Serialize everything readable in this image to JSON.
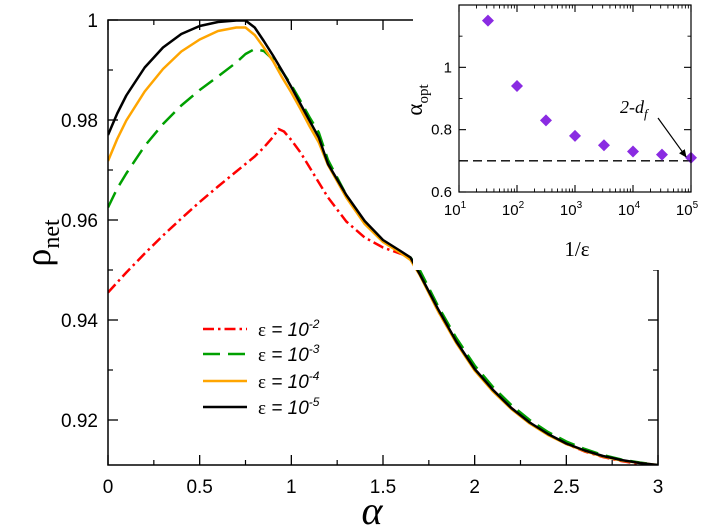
{
  "chart_data": [
    {
      "id": "main",
      "type": "line",
      "xlabel": "α",
      "ylabel": {
        "base": "ρ",
        "sub": "net"
      },
      "xlim": [
        0,
        3
      ],
      "ylim": [
        0.911,
        1.0
      ],
      "xticks": [
        {
          "v": 0,
          "label": "0"
        },
        {
          "v": 0.5,
          "label": "0.5"
        },
        {
          "v": 1,
          "label": "1"
        },
        {
          "v": 1.5,
          "label": "1.5"
        },
        {
          "v": 2,
          "label": "2"
        },
        {
          "v": 2.5,
          "label": "2.5"
        },
        {
          "v": 3,
          "label": "3"
        }
      ],
      "yticks": [
        {
          "v": 0.92,
          "label": "0.92"
        },
        {
          "v": 0.94,
          "label": "0.94"
        },
        {
          "v": 0.96,
          "label": "0.96"
        },
        {
          "v": 0.98,
          "label": "0.98"
        },
        {
          "v": 1.0,
          "label": "1"
        }
      ],
      "series": [
        {
          "name": "eps-1e-2",
          "legend": {
            "sym": "ε",
            "eq": " = 10",
            "exp": "-2"
          },
          "color": "#ff0000",
          "dash": "11 4 2.5 4",
          "x": [
            0,
            0.1,
            0.2,
            0.3,
            0.4,
            0.5,
            0.6,
            0.7,
            0.8,
            0.85,
            0.9,
            0.93,
            0.96,
            1.0,
            1.05,
            1.1,
            1.15,
            1.2,
            1.3,
            1.4,
            1.5,
            1.6,
            1.64,
            1.66,
            1.7,
            1.8,
            1.9,
            2.0,
            2.1,
            2.2,
            2.3,
            2.4,
            2.5,
            2.6,
            2.7,
            2.8,
            2.9,
            3.0
          ],
          "y": [
            0.9455,
            0.9495,
            0.9533,
            0.9569,
            0.9603,
            0.9636,
            0.9667,
            0.9697,
            0.9727,
            0.9745,
            0.9766,
            0.9782,
            0.9777,
            0.976,
            0.9735,
            0.9705,
            0.9675,
            0.9645,
            0.9597,
            0.9565,
            0.9545,
            0.9532,
            0.9526,
            0.952,
            0.9492,
            0.9418,
            0.9355,
            0.9302,
            0.926,
            0.9224,
            0.9195,
            0.9171,
            0.9152,
            0.9137,
            0.9126,
            0.9118,
            0.9112,
            0.9108
          ]
        },
        {
          "name": "eps-1e-3",
          "legend": {
            "sym": "ε",
            "eq": " = 10",
            "exp": "-3"
          },
          "color": "#00a000",
          "dash": "17 8",
          "x": [
            0,
            0.05,
            0.1,
            0.2,
            0.3,
            0.4,
            0.5,
            0.6,
            0.7,
            0.75,
            0.8,
            0.85,
            0.9,
            0.95,
            1.0,
            1.05,
            1.1,
            1.15,
            1.2,
            1.3,
            1.4,
            1.5,
            1.6,
            1.65,
            1.7,
            1.8,
            1.9,
            2.0,
            2.1,
            2.2,
            2.3,
            2.4,
            2.5,
            2.6,
            2.7,
            2.8,
            2.9,
            3.0
          ],
          "y": [
            0.9625,
            0.9663,
            0.9693,
            0.9748,
            0.9792,
            0.9829,
            0.986,
            0.9887,
            0.9915,
            0.9932,
            0.9942,
            0.9938,
            0.9921,
            0.9897,
            0.987,
            0.9838,
            0.9805,
            0.9775,
            0.972,
            0.965,
            0.9595,
            0.9558,
            0.9535,
            0.9525,
            0.95,
            0.9428,
            0.9364,
            0.9309,
            0.9266,
            0.923,
            0.92,
            0.9176,
            0.9157,
            0.9142,
            0.913,
            0.9121,
            0.9115,
            0.911
          ]
        },
        {
          "name": "eps-1e-4",
          "legend": {
            "sym": "ε",
            "eq": " = 10",
            "exp": "-4"
          },
          "color": "#ffa500",
          "dash": "",
          "x": [
            0,
            0.05,
            0.1,
            0.2,
            0.3,
            0.4,
            0.5,
            0.6,
            0.7,
            0.75,
            0.8,
            0.85,
            0.9,
            0.95,
            1.0,
            1.05,
            1.1,
            1.15,
            1.2,
            1.3,
            1.4,
            1.5,
            1.6,
            1.65,
            1.7,
            1.8,
            1.9,
            2.0,
            2.1,
            2.2,
            2.3,
            2.4,
            2.5,
            2.6,
            2.7,
            2.8,
            2.9,
            3.0
          ],
          "y": [
            0.9718,
            0.9762,
            0.9799,
            0.9857,
            0.9902,
            0.9937,
            0.9961,
            0.9978,
            0.9985,
            0.9985,
            0.997,
            0.9945,
            0.9918,
            0.9885,
            0.9855,
            0.9822,
            0.9787,
            0.9755,
            0.971,
            0.9645,
            0.9592,
            0.9556,
            0.9533,
            0.952,
            0.949,
            0.9418,
            0.9354,
            0.9299,
            0.9257,
            0.9222,
            0.9193,
            0.917,
            0.9152,
            0.9138,
            0.9127,
            0.9119,
            0.9114,
            0.911
          ]
        },
        {
          "name": "eps-1e-5",
          "legend": {
            "sym": "ε",
            "eq": " = 10",
            "exp": "-5"
          },
          "color": "#000000",
          "dash": "",
          "x": [
            0,
            0.05,
            0.1,
            0.2,
            0.3,
            0.4,
            0.5,
            0.6,
            0.7,
            0.75,
            0.8,
            0.85,
            0.9,
            0.95,
            1.0,
            1.05,
            1.1,
            1.15,
            1.2,
            1.3,
            1.4,
            1.5,
            1.6,
            1.65,
            1.7,
            1.8,
            1.9,
            2.0,
            2.1,
            2.2,
            2.3,
            2.4,
            2.5,
            2.6,
            2.7,
            2.8,
            2.9,
            3.0
          ],
          "y": [
            0.977,
            0.9813,
            0.9849,
            0.9905,
            0.9945,
            0.9972,
            0.9988,
            0.9996,
            0.9999,
            0.9999,
            0.9985,
            0.9958,
            0.9929,
            0.9898,
            0.9866,
            0.9832,
            0.9798,
            0.9765,
            0.9712,
            0.965,
            0.9598,
            0.956,
            0.9537,
            0.9525,
            0.9492,
            0.9422,
            0.9357,
            0.9302,
            0.926,
            0.9224,
            0.9195,
            0.9172,
            0.9153,
            0.9139,
            0.9128,
            0.912,
            0.9114,
            0.911
          ]
        }
      ]
    },
    {
      "id": "inset",
      "type": "scatter",
      "xlabel": "1/ε",
      "ylabel": {
        "base": "α",
        "sub": "opt"
      },
      "xscale": "log",
      "xlim": [
        10,
        100000
      ],
      "ylim": [
        0.6,
        1.2
      ],
      "xticks": [
        {
          "v": 10,
          "base": "10",
          "exp": "1"
        },
        {
          "v": 100,
          "base": "10",
          "exp": "2"
        },
        {
          "v": 1000,
          "base": "10",
          "exp": "3"
        },
        {
          "v": 10000,
          "base": "10",
          "exp": "4"
        },
        {
          "v": 100000,
          "base": "10",
          "exp": "5"
        }
      ],
      "yticks": [
        {
          "v": 0.6,
          "label": "0.6"
        },
        {
          "v": 0.8,
          "label": "0.8"
        },
        {
          "v": 1.0,
          "label": "1"
        }
      ],
      "points": {
        "color": "#8a2be2",
        "x": [
          31.6,
          100,
          316,
          1000,
          3160,
          10000,
          31600,
          100000
        ],
        "y": [
          1.15,
          0.94,
          0.83,
          0.78,
          0.75,
          0.73,
          0.72,
          0.71
        ]
      },
      "reference_line": {
        "y": 0.7,
        "color": "#000000"
      },
      "annotation": {
        "text": "2-d",
        "sub": "f",
        "target_x": 100000,
        "target_y": 0.7
      }
    }
  ]
}
